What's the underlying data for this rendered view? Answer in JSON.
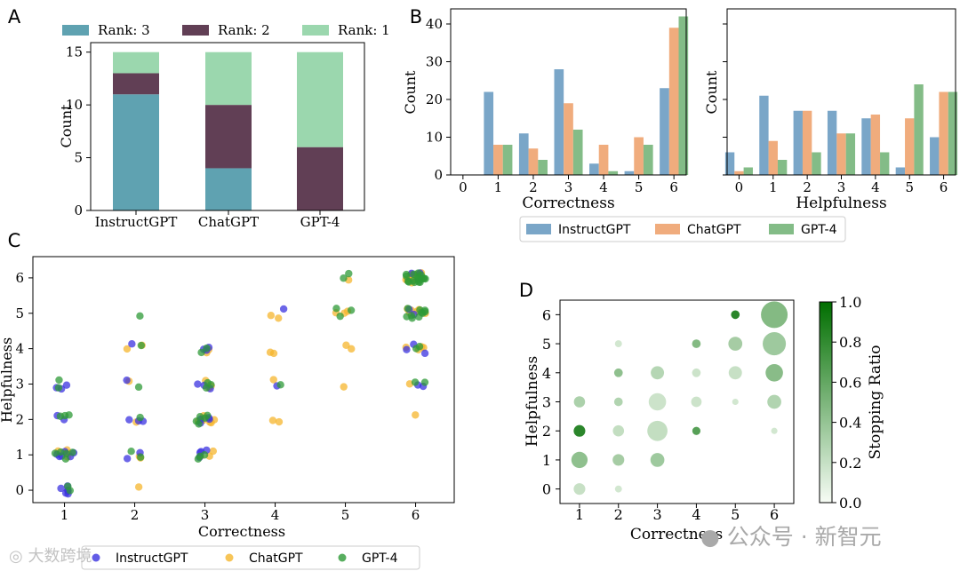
{
  "panel_letters": [
    "A",
    "B",
    "C",
    "D"
  ],
  "colors": {
    "rank3": "#5fa2b1",
    "rank2": "#613f55",
    "rank1": "#9bd7ae",
    "instructgpt_bar": "#6b9cc2",
    "chatgpt_bar": "#eea36f",
    "gpt4_bar": "#76b57a",
    "instructgpt_dot": "#3b33e0",
    "chatgpt_dot": "#f5b62e",
    "gpt4_dot": "#2e9a37",
    "bubble": "#2e9a37"
  },
  "chart_data": [
    {
      "panel": "A",
      "type": "bar",
      "stacked": true,
      "categories": [
        "InstructGPT",
        "ChatGPT",
        "GPT-4"
      ],
      "series": [
        {
          "name": "Rank: 3",
          "values": [
            11,
            4,
            0
          ]
        },
        {
          "name": "Rank: 2",
          "values": [
            2,
            6,
            6
          ]
        },
        {
          "name": "Rank: 1",
          "values": [
            2,
            5,
            9
          ]
        }
      ],
      "ylabel": "Count",
      "ylim": [
        0,
        15
      ],
      "yticks": [
        "0",
        "5",
        "10",
        "15"
      ],
      "legend_position": "top"
    },
    {
      "panel": "B",
      "type": "bar",
      "categories": [
        "0",
        "1",
        "2",
        "3",
        "4",
        "5",
        "6"
      ],
      "xlabel": "Correctness",
      "ylabel": "Count",
      "ylim": [
        0,
        44
      ],
      "yticks": [
        "0",
        "10",
        "20",
        "30",
        "40"
      ],
      "series": [
        {
          "name": "InstructGPT",
          "values": [
            0,
            22,
            11,
            28,
            3,
            1,
            23
          ]
        },
        {
          "name": "ChatGPT",
          "values": [
            0,
            8,
            7,
            19,
            8,
            10,
            39
          ]
        },
        {
          "name": "GPT-4",
          "values": [
            0,
            8,
            4,
            12,
            1,
            8,
            42
          ]
        }
      ],
      "legend_position": "bottom"
    },
    {
      "panel": "B",
      "type": "bar",
      "categories": [
        "0",
        "1",
        "2",
        "3",
        "4",
        "5",
        "6"
      ],
      "xlabel": "Helpfulness",
      "ylabel": "Count",
      "ylim": [
        0,
        44
      ],
      "series": [
        {
          "name": "InstructGPT",
          "values": [
            6,
            21,
            17,
            17,
            15,
            2,
            10
          ]
        },
        {
          "name": "ChatGPT",
          "values": [
            1,
            9,
            17,
            11,
            16,
            15,
            22
          ]
        },
        {
          "name": "GPT-4",
          "values": [
            2,
            4,
            6,
            11,
            6,
            24,
            22
          ]
        }
      ]
    },
    {
      "panel": "C",
      "type": "scatter",
      "xlabel": "Correctness",
      "ylabel": "Helpfulness",
      "xticks": [
        "1",
        "2",
        "3",
        "4",
        "5",
        "6"
      ],
      "yticks": [
        "0",
        "1",
        "2",
        "3",
        "4",
        "5",
        "6"
      ],
      "xlim": [
        0.55,
        6.55
      ],
      "ylim": [
        -0.35,
        6.6
      ],
      "legend": [
        "InstructGPT",
        "ChatGPT",
        "GPT-4"
      ],
      "legend_position": "bottom",
      "clusters": [
        {
          "x": 1,
          "y": 0,
          "counts": [
            6,
            0,
            2
          ]
        },
        {
          "x": 1,
          "y": 1,
          "counts": [
            6,
            4,
            5
          ]
        },
        {
          "x": 1,
          "y": 2,
          "counts": [
            2,
            0,
            3
          ]
        },
        {
          "x": 1,
          "y": 3,
          "counts": [
            3,
            0,
            2
          ]
        },
        {
          "x": 2,
          "y": 0,
          "counts": [
            0,
            1,
            0
          ]
        },
        {
          "x": 2,
          "y": 1,
          "counts": [
            2,
            2,
            2
          ]
        },
        {
          "x": 2,
          "y": 2,
          "counts": [
            3,
            1,
            1
          ]
        },
        {
          "x": 2,
          "y": 3,
          "counts": [
            1,
            1,
            1
          ]
        },
        {
          "x": 2,
          "y": 4,
          "counts": [
            1,
            2,
            1
          ]
        },
        {
          "x": 2,
          "y": 5,
          "counts": [
            0,
            0,
            1
          ]
        },
        {
          "x": 3,
          "y": 1,
          "counts": [
            4,
            3,
            3
          ]
        },
        {
          "x": 3,
          "y": 2,
          "counts": [
            4,
            7,
            5
          ]
        },
        {
          "x": 3,
          "y": 3,
          "counts": [
            3,
            3,
            3
          ]
        },
        {
          "x": 3,
          "y": 4,
          "counts": [
            3,
            2,
            2
          ]
        },
        {
          "x": 4,
          "y": 2,
          "counts": [
            0,
            2,
            0
          ]
        },
        {
          "x": 4,
          "y": 3,
          "counts": [
            1,
            1,
            1
          ]
        },
        {
          "x": 4,
          "y": 4,
          "counts": [
            0,
            2,
            0
          ]
        },
        {
          "x": 4,
          "y": 5,
          "counts": [
            1,
            2,
            0
          ]
        },
        {
          "x": 5,
          "y": 3,
          "counts": [
            0,
            1,
            0
          ]
        },
        {
          "x": 5,
          "y": 4,
          "counts": [
            0,
            2,
            0
          ]
        },
        {
          "x": 5,
          "y": 5,
          "counts": [
            0,
            3,
            3
          ]
        },
        {
          "x": 5,
          "y": 6,
          "counts": [
            0,
            1,
            2
          ]
        },
        {
          "x": 6,
          "y": 2,
          "counts": [
            0,
            1,
            0
          ]
        },
        {
          "x": 6,
          "y": 3,
          "counts": [
            2,
            1,
            2
          ]
        },
        {
          "x": 6,
          "y": 4,
          "counts": [
            3,
            4,
            2
          ]
        },
        {
          "x": 6,
          "y": 5,
          "counts": [
            2,
            6,
            10
          ]
        },
        {
          "x": 6,
          "y": 6,
          "counts": [
            2,
            12,
            18
          ]
        }
      ]
    },
    {
      "panel": "D",
      "type": "scatter",
      "xlabel": "Correctness",
      "ylabel": "Helpfulness",
      "xticks": [
        "1",
        "2",
        "3",
        "4",
        "5",
        "6"
      ],
      "yticks": [
        "0",
        "1",
        "2",
        "3",
        "4",
        "5",
        "6"
      ],
      "colorbar": {
        "label": "Stopping Ratio",
        "range": [
          0.0,
          1.0
        ],
        "ticks": [
          "0.0",
          "0.2",
          "0.4",
          "0.6",
          "0.8",
          "1.0"
        ]
      },
      "points": [
        {
          "x": 1,
          "y": 0,
          "size": 0.35,
          "ratio": 0.1
        },
        {
          "x": 1,
          "y": 1,
          "size": 0.55,
          "ratio": 0.35
        },
        {
          "x": 1,
          "y": 2,
          "size": 0.35,
          "ratio": 0.8
        },
        {
          "x": 1,
          "y": 3,
          "size": 0.33,
          "ratio": 0.22
        },
        {
          "x": 2,
          "y": 0,
          "size": 0.15,
          "ratio": 0.05
        },
        {
          "x": 2,
          "y": 1,
          "size": 0.35,
          "ratio": 0.25
        },
        {
          "x": 2,
          "y": 2,
          "size": 0.33,
          "ratio": 0.12
        },
        {
          "x": 2,
          "y": 3,
          "size": 0.22,
          "ratio": 0.2
        },
        {
          "x": 2,
          "y": 4,
          "size": 0.22,
          "ratio": 0.35
        },
        {
          "x": 2,
          "y": 5,
          "size": 0.15,
          "ratio": 0.05
        },
        {
          "x": 3,
          "y": 1,
          "size": 0.45,
          "ratio": 0.28
        },
        {
          "x": 3,
          "y": 2,
          "size": 0.72,
          "ratio": 0.12
        },
        {
          "x": 3,
          "y": 3,
          "size": 0.6,
          "ratio": 0.08
        },
        {
          "x": 3,
          "y": 4,
          "size": 0.42,
          "ratio": 0.18
        },
        {
          "x": 4,
          "y": 2,
          "size": 0.2,
          "ratio": 0.6
        },
        {
          "x": 4,
          "y": 3,
          "size": 0.3,
          "ratio": 0.08
        },
        {
          "x": 4,
          "y": 4,
          "size": 0.22,
          "ratio": 0.08
        },
        {
          "x": 4,
          "y": 5,
          "size": 0.22,
          "ratio": 0.4
        },
        {
          "x": 5,
          "y": 3,
          "size": 0.12,
          "ratio": 0.05
        },
        {
          "x": 5,
          "y": 4,
          "size": 0.42,
          "ratio": 0.1
        },
        {
          "x": 5,
          "y": 5,
          "size": 0.45,
          "ratio": 0.25
        },
        {
          "x": 5,
          "y": 6,
          "size": 0.22,
          "ratio": 0.8
        },
        {
          "x": 6,
          "y": 2,
          "size": 0.12,
          "ratio": 0.05
        },
        {
          "x": 6,
          "y": 3,
          "size": 0.45,
          "ratio": 0.2
        },
        {
          "x": 6,
          "y": 4,
          "size": 0.6,
          "ratio": 0.38
        },
        {
          "x": 6,
          "y": 5,
          "size": 0.85,
          "ratio": 0.28
        },
        {
          "x": 6,
          "y": 6,
          "size": 1.0,
          "ratio": 0.4
        }
      ]
    }
  ],
  "watermarks": [
    "大数跨境",
    "公众号 · 新智元"
  ]
}
